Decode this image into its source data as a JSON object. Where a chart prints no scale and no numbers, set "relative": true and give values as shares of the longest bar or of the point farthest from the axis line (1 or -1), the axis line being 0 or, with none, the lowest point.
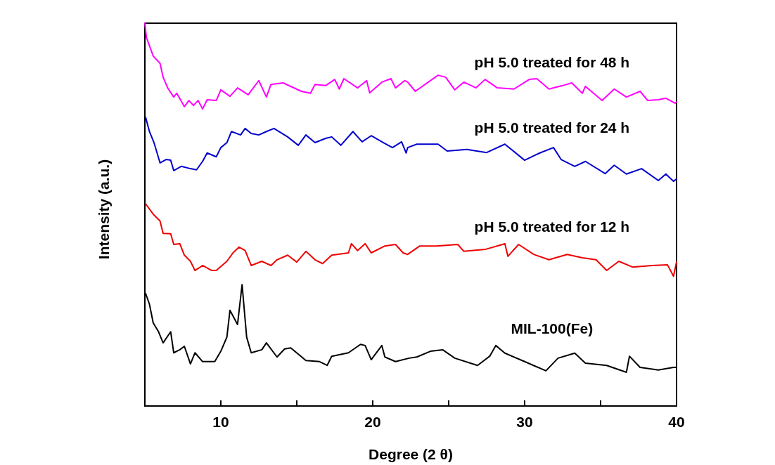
{
  "chart_data": {
    "type": "line",
    "relative": true,
    "xlabel": "Degree (2 θ)",
    "ylabel": "Intensity (a.u.)",
    "xlim": [
      5,
      40
    ],
    "xticks": [
      10,
      {
        "value": 15,
        "label": null
      },
      20,
      {
        "value": 25,
        "label": null
      },
      30,
      {
        "value": 35,
        "label": null
      },
      40
    ],
    "marker": "none",
    "line_style": "solid",
    "grid": false,
    "series": [
      {
        "name": "pH 5.0 treated for 48 h",
        "color": "#ff00ff",
        "x": [
          5.0,
          5.1,
          5.55,
          6.0,
          6.2,
          6.5,
          6.9,
          7.1,
          7.6,
          7.9,
          8.2,
          8.5,
          8.8,
          9.1,
          9.7,
          10.0,
          10.6,
          11.1,
          11.8,
          12.5,
          13.0,
          13.3,
          14.1,
          15.3,
          15.9,
          16.2,
          16.9,
          17.5,
          17.8,
          18.1,
          19.0,
          19.6,
          19.8,
          20.6,
          21.2,
          21.5,
          22.1,
          22.3,
          22.8,
          24.3,
          24.8,
          25.4,
          26.0,
          26.8,
          27.4,
          28.2,
          29.3,
          30.3,
          30.8,
          31.6,
          32.5,
          33.1,
          33.8,
          34.0,
          35.1,
          35.9,
          36.7,
          37.6,
          38.1,
          38.8,
          39.3,
          39.9,
          40.0
        ],
        "values": [
          1.0,
          0.963,
          0.914,
          0.895,
          0.859,
          0.831,
          0.807,
          0.817,
          0.782,
          0.798,
          0.785,
          0.798,
          0.776,
          0.8,
          0.798,
          0.826,
          0.809,
          0.831,
          0.813,
          0.85,
          0.807,
          0.84,
          0.844,
          0.822,
          0.817,
          0.84,
          0.837,
          0.853,
          0.828,
          0.855,
          0.831,
          0.85,
          0.818,
          0.846,
          0.855,
          0.831,
          0.85,
          0.846,
          0.822,
          0.864,
          0.859,
          0.826,
          0.846,
          0.831,
          0.853,
          0.831,
          0.828,
          0.853,
          0.855,
          0.828,
          0.837,
          0.844,
          0.817,
          0.835,
          0.798,
          0.828,
          0.807,
          0.822,
          0.798,
          0.8,
          0.804,
          0.791,
          0.794
        ]
      },
      {
        "name": "pH 5.0 treated for 24 h",
        "color": "#0000cc",
        "x": [
          5.05,
          5.3,
          5.6,
          6.0,
          6.4,
          6.7,
          6.9,
          7.4,
          8.0,
          8.4,
          8.8,
          9.1,
          9.7,
          10.0,
          10.4,
          10.7,
          11.3,
          11.6,
          12.0,
          12.5,
          13.0,
          13.5,
          14.4,
          15.1,
          15.6,
          16.2,
          16.9,
          17.3,
          17.9,
          18.7,
          19.3,
          19.9,
          20.7,
          21.3,
          21.9,
          22.2,
          22.3,
          22.9,
          24.3,
          24.9,
          26.2,
          27.5,
          28.7,
          30.0,
          31.0,
          31.9,
          32.4,
          33.3,
          34.0,
          35.3,
          35.9,
          36.7,
          37.7,
          38.8,
          39.3,
          39.8,
          40.0
        ],
        "values": [
          0.754,
          0.717,
          0.688,
          0.635,
          0.644,
          0.642,
          0.615,
          0.626,
          0.62,
          0.617,
          0.639,
          0.661,
          0.651,
          0.675,
          0.688,
          0.717,
          0.708,
          0.725,
          0.712,
          0.708,
          0.717,
          0.725,
          0.703,
          0.681,
          0.708,
          0.688,
          0.699,
          0.703,
          0.681,
          0.717,
          0.69,
          0.706,
          0.688,
          0.675,
          0.69,
          0.661,
          0.675,
          0.684,
          0.684,
          0.666,
          0.67,
          0.662,
          0.684,
          0.642,
          0.661,
          0.675,
          0.644,
          0.626,
          0.639,
          0.607,
          0.629,
          0.606,
          0.62,
          0.589,
          0.606,
          0.587,
          0.593
        ]
      },
      {
        "name": "pH 5.0 treated for 12 h",
        "color": "#ee0000",
        "x": [
          5.05,
          5.55,
          6.0,
          6.2,
          6.7,
          6.9,
          7.3,
          7.6,
          8.0,
          8.3,
          8.8,
          9.4,
          9.7,
          10.4,
          10.8,
          11.2,
          11.6,
          12.0,
          12.7,
          13.3,
          13.7,
          14.4,
          15.0,
          15.6,
          16.2,
          16.7,
          17.3,
          18.4,
          18.6,
          19.0,
          19.5,
          19.9,
          20.8,
          21.5,
          22.0,
          22.3,
          23.1,
          24.2,
          25.6,
          26.0,
          27.4,
          28.7,
          28.9,
          29.6,
          30.6,
          31.6,
          32.8,
          33.8,
          34.7,
          35.4,
          36.2,
          37.1,
          38.4,
          39.4,
          39.8,
          40.0
        ],
        "values": [
          0.528,
          0.501,
          0.483,
          0.451,
          0.45,
          0.422,
          0.424,
          0.394,
          0.378,
          0.354,
          0.367,
          0.354,
          0.354,
          0.378,
          0.4,
          0.415,
          0.406,
          0.367,
          0.378,
          0.367,
          0.382,
          0.394,
          0.376,
          0.404,
          0.382,
          0.372,
          0.394,
          0.4,
          0.424,
          0.406,
          0.424,
          0.4,
          0.418,
          0.422,
          0.4,
          0.396,
          0.418,
          0.418,
          0.422,
          0.404,
          0.409,
          0.424,
          0.391,
          0.422,
          0.396,
          0.382,
          0.396,
          0.387,
          0.382,
          0.354,
          0.378,
          0.363,
          0.367,
          0.369,
          0.339,
          0.376
        ]
      },
      {
        "name": "MIL-100(Fe)",
        "color": "#000000",
        "x": [
          5.05,
          5.3,
          5.55,
          5.9,
          6.2,
          6.7,
          6.9,
          7.3,
          7.6,
          8.0,
          8.3,
          8.8,
          9.6,
          10.0,
          10.4,
          10.6,
          11.1,
          11.4,
          11.7,
          12.0,
          12.7,
          13.0,
          13.7,
          14.2,
          14.6,
          15.6,
          16.5,
          17.0,
          17.3,
          18.4,
          19.2,
          19.5,
          19.9,
          20.6,
          20.8,
          21.5,
          22.4,
          22.9,
          23.8,
          24.6,
          25.4,
          26.9,
          27.7,
          28.1,
          28.7,
          30.0,
          31.4,
          32.2,
          33.3,
          34.0,
          35.4,
          36.7,
          36.9,
          37.6,
          38.8,
          39.8,
          40.0
        ],
        "values": [
          0.294,
          0.266,
          0.217,
          0.194,
          0.165,
          0.194,
          0.139,
          0.147,
          0.156,
          0.11,
          0.139,
          0.116,
          0.116,
          0.143,
          0.18,
          0.25,
          0.213,
          0.317,
          0.18,
          0.139,
          0.147,
          0.165,
          0.128,
          0.149,
          0.152,
          0.119,
          0.116,
          0.106,
          0.13,
          0.139,
          0.161,
          0.158,
          0.121,
          0.158,
          0.128,
          0.116,
          0.125,
          0.128,
          0.143,
          0.147,
          0.125,
          0.106,
          0.13,
          0.158,
          0.138,
          0.116,
          0.092,
          0.125,
          0.138,
          0.112,
          0.106,
          0.088,
          0.13,
          0.101,
          0.094,
          0.101,
          0.101
        ]
      }
    ]
  }
}
